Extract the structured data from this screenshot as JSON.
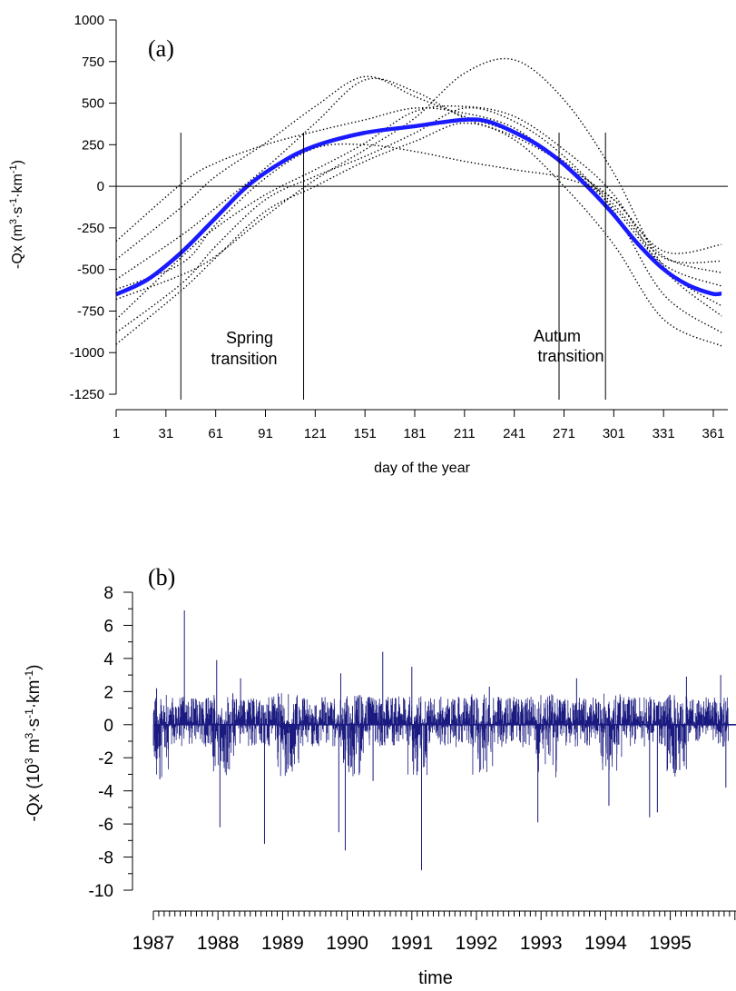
{
  "chart_data": [
    {
      "type": "line",
      "panel_label": "(a)",
      "xlabel": "day of the year",
      "ylabel": "-Qx (m3·s-1·km-1)",
      "ylabel_parts": {
        "pre": "-Qx (m",
        "sup1": "3",
        "mid1": "·s",
        "sup2": "-1",
        "mid2": "·km",
        "sup3": "-1",
        "post": ")"
      },
      "xlim": [
        1,
        366
      ],
      "ylim": [
        -1250,
        1000
      ],
      "x_ticks": [
        1,
        31,
        61,
        91,
        121,
        151,
        181,
        211,
        241,
        271,
        301,
        331,
        361
      ],
      "y_ticks": [
        -1250,
        -1000,
        -750,
        -500,
        -250,
        0,
        250,
        500,
        750,
        1000
      ],
      "mean_curve": {
        "color": "#1a1aff",
        "x": [
          1,
          20,
          40,
          60,
          80,
          100,
          120,
          150,
          180,
          210,
          225,
          240,
          255,
          270,
          285,
          300,
          315,
          330,
          345,
          360,
          366
        ],
        "y": [
          -650,
          -560,
          -400,
          -200,
          0,
          140,
          240,
          320,
          360,
          400,
          390,
          330,
          250,
          140,
          0,
          -160,
          -340,
          -490,
          -590,
          -645,
          -645
        ]
      },
      "year_curves": [
        {
          "x": [
            1,
            41,
            61,
            91,
            121,
            151,
            181,
            211,
            241,
            271,
            301,
            331,
            366
          ],
          "y": [
            -330,
            20,
            140,
            250,
            330,
            400,
            470,
            440,
            350,
            130,
            -80,
            -390,
            -350
          ]
        },
        {
          "x": [
            1,
            41,
            61,
            91,
            121,
            151,
            181,
            211,
            241,
            271,
            301,
            331,
            366
          ],
          "y": [
            -440,
            -120,
            60,
            260,
            480,
            660,
            540,
            420,
            320,
            150,
            -110,
            -430,
            -450
          ]
        },
        {
          "x": [
            1,
            41,
            61,
            91,
            121,
            151,
            181,
            211,
            241,
            271,
            301,
            331,
            366
          ],
          "y": [
            -560,
            -290,
            -130,
            110,
            380,
            640,
            570,
            410,
            300,
            130,
            -130,
            -470,
            -600
          ]
        },
        {
          "x": [
            1,
            41,
            61,
            91,
            121,
            151,
            181,
            211,
            241,
            271,
            301,
            331,
            366
          ],
          "y": [
            -680,
            -530,
            -420,
            -180,
            40,
            220,
            410,
            680,
            760,
            520,
            80,
            -480,
            -720
          ]
        },
        {
          "x": [
            1,
            41,
            61,
            91,
            121,
            151,
            181,
            211,
            241,
            271,
            301,
            331,
            366
          ],
          "y": [
            -800,
            -420,
            -250,
            -50,
            100,
            260,
            450,
            480,
            420,
            220,
            -50,
            -500,
            -780
          ]
        },
        {
          "x": [
            1,
            41,
            61,
            91,
            121,
            151,
            181,
            211,
            241,
            271,
            301,
            331,
            366
          ],
          "y": [
            -880,
            -580,
            -360,
            -80,
            60,
            180,
            320,
            470,
            390,
            180,
            -150,
            -650,
            -880
          ]
        },
        {
          "x": [
            1,
            41,
            61,
            91,
            121,
            151,
            181,
            211,
            241,
            271,
            301,
            331,
            366
          ],
          "y": [
            -950,
            -620,
            -430,
            -150,
            0,
            150,
            270,
            380,
            280,
            0,
            -350,
            -800,
            -960
          ]
        },
        {
          "x": [
            1,
            41,
            61,
            91,
            121,
            151,
            181,
            211,
            241,
            271,
            301,
            331,
            366
          ],
          "y": [
            -620,
            -460,
            -230,
            50,
            230,
            250,
            210,
            150,
            100,
            50,
            -80,
            -420,
            -520
          ]
        }
      ],
      "transition_lines": [
        40,
        114,
        268,
        296
      ],
      "annotations": [
        {
          "text_line1": "Spring",
          "text_line2": "transition"
        },
        {
          "text_line1": "Autum",
          "text_line2": "transition"
        }
      ]
    },
    {
      "type": "line",
      "panel_label": "(b)",
      "xlabel": "time",
      "ylabel_parts": {
        "pre": "-Qx (10",
        "sup1": "3",
        "mid1": " m",
        "sup2": "3",
        "mid2": "·s",
        "sup3": "-1",
        "mid3": "·km",
        "sup4": "-1",
        "post": ")"
      },
      "ylim": [
        -10,
        8
      ],
      "y_ticks": [
        -10,
        -8,
        -6,
        -4,
        -2,
        0,
        2,
        4,
        6,
        8
      ],
      "x_tick_labels": [
        "1987",
        "1988",
        "1989",
        "1990",
        "1991",
        "1992",
        "1993",
        "1994",
        "1995"
      ],
      "xlim_years": [
        1987,
        1995.9
      ],
      "series_color": "#1a1a80",
      "spikes": [
        {
          "t": 1987.48,
          "v": 6.9
        },
        {
          "t": 1988.03,
          "v": -6.2
        },
        {
          "t": 1987.98,
          "v": 3.9
        },
        {
          "t": 1988.72,
          "v": -7.2
        },
        {
          "t": 1989.87,
          "v": -6.5
        },
        {
          "t": 1989.97,
          "v": -7.6
        },
        {
          "t": 1990.55,
          "v": 4.4
        },
        {
          "t": 1991.15,
          "v": -8.8
        },
        {
          "t": 1991.0,
          "v": 3.5
        },
        {
          "t": 1992.95,
          "v": -5.9
        },
        {
          "t": 1994.05,
          "v": -4.9
        },
        {
          "t": 1994.68,
          "v": -5.6
        },
        {
          "t": 1994.8,
          "v": -5.3
        },
        {
          "t": 1995.78,
          "v": 3.0
        },
        {
          "t": 1995.86,
          "v": -3.8
        },
        {
          "t": 1987.05,
          "v": 2.2
        },
        {
          "t": 1987.1,
          "v": -3.3
        },
        {
          "t": 1988.35,
          "v": 2.8
        },
        {
          "t": 1989.9,
          "v": 3.1
        },
        {
          "t": 1990.4,
          "v": -3.4
        },
        {
          "t": 1992.2,
          "v": 2.3
        },
        {
          "t": 1993.55,
          "v": 2.8
        },
        {
          "t": 1995.25,
          "v": 2.9
        }
      ]
    }
  ]
}
